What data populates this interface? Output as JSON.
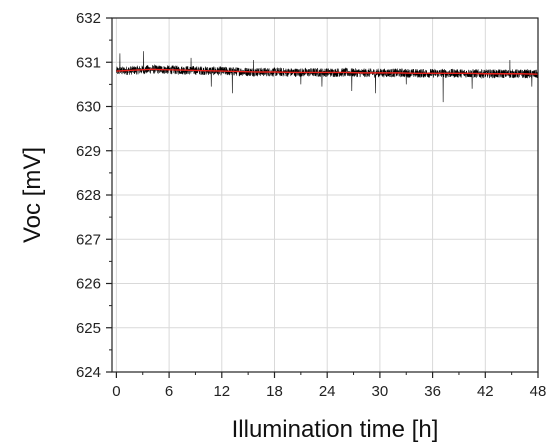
{
  "chart_data": {
    "type": "line",
    "title": "",
    "xlabel": "Illumination time [h]",
    "ylabel": "Voc [mV]",
    "xlim": [
      -0.5,
      48
    ],
    "ylim": [
      624,
      632
    ],
    "xticks": [
      0,
      6,
      12,
      18,
      24,
      30,
      36,
      42,
      48
    ],
    "yticks": [
      624,
      625,
      626,
      627,
      628,
      629,
      630,
      631,
      632
    ],
    "grid": true,
    "legend": "none",
    "series": [
      {
        "style": "raw data, noisy black trace",
        "color": "#000000",
        "x": [
          0,
          2,
          4,
          6,
          8,
          10,
          12,
          14,
          16,
          18,
          20,
          22,
          24,
          26,
          28,
          30,
          32,
          34,
          36,
          38,
          40,
          42,
          44,
          46,
          48
        ],
        "y": [
          630.8,
          630.82,
          630.84,
          630.83,
          630.82,
          630.81,
          630.8,
          630.79,
          630.78,
          630.78,
          630.77,
          630.77,
          630.77,
          630.77,
          630.76,
          630.76,
          630.76,
          630.75,
          630.75,
          630.75,
          630.75,
          630.74,
          630.74,
          630.74,
          630.73
        ],
        "noise_band_mV": 0.1,
        "spikes": [
          {
            "x": 0.4,
            "y": 631.2
          },
          {
            "x": 3.1,
            "y": 631.25
          },
          {
            "x": 8.5,
            "y": 631.1
          },
          {
            "x": 10.8,
            "y": 630.45
          },
          {
            "x": 13.2,
            "y": 630.3
          },
          {
            "x": 15.6,
            "y": 631.05
          },
          {
            "x": 21.0,
            "y": 630.5
          },
          {
            "x": 23.4,
            "y": 630.45
          },
          {
            "x": 26.8,
            "y": 630.35
          },
          {
            "x": 29.5,
            "y": 630.3
          },
          {
            "x": 33.0,
            "y": 630.5
          },
          {
            "x": 37.2,
            "y": 630.1
          },
          {
            "x": 40.5,
            "y": 630.4
          },
          {
            "x": 44.8,
            "y": 631.05
          },
          {
            "x": 47.3,
            "y": 630.45
          }
        ]
      },
      {
        "style": "smoothed trend, red line",
        "color": "#e8221b",
        "x": [
          0,
          2,
          4,
          6,
          8,
          10,
          12,
          14,
          16,
          18,
          20,
          22,
          24,
          26,
          28,
          30,
          32,
          34,
          36,
          38,
          40,
          42,
          44,
          46,
          48
        ],
        "y": [
          630.8,
          630.82,
          630.84,
          630.83,
          630.82,
          630.81,
          630.8,
          630.79,
          630.78,
          630.78,
          630.77,
          630.77,
          630.77,
          630.77,
          630.76,
          630.76,
          630.76,
          630.75,
          630.75,
          630.75,
          630.75,
          630.74,
          630.74,
          630.74,
          630.73
        ]
      }
    ]
  }
}
